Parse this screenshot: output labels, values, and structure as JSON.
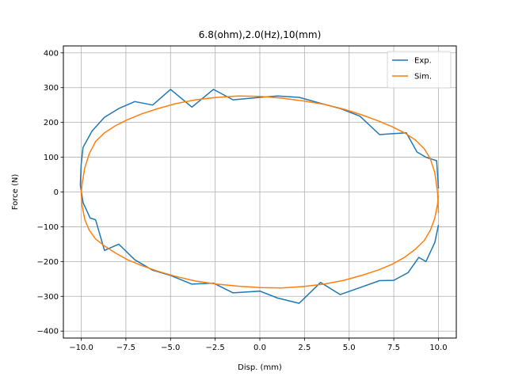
{
  "chart_data": {
    "type": "line",
    "title": "6.8(ohm),2.0(Hz),10(mm)",
    "xlabel": "Disp. (mm)",
    "ylabel": "Force (N)",
    "xlim": [
      -11,
      11
    ],
    "ylim": [
      -420,
      420
    ],
    "xticks": [
      -10.0,
      -7.5,
      -5.0,
      -2.5,
      0.0,
      2.5,
      5.0,
      7.5,
      10.0
    ],
    "xtick_labels": [
      "−10.0",
      "−7.5",
      "−5.0",
      "−2.5",
      "0.0",
      "2.5",
      "5.0",
      "7.5",
      "10.0"
    ],
    "yticks": [
      -400,
      -300,
      -200,
      -100,
      0,
      100,
      200,
      300,
      400
    ],
    "ytick_labels": [
      "−400",
      "−300",
      "−200",
      "−100",
      "0",
      "100",
      "200",
      "300",
      "400"
    ],
    "grid": true,
    "legend": "top-right",
    "series": [
      {
        "name": "Exp.",
        "color": "#1f77b4",
        "x": [
          10.0,
          9.9,
          9.6,
          9.3,
          8.8,
          8.2,
          7.5,
          6.7,
          5.6,
          4.5,
          3.4,
          2.2,
          1.0,
          0.0,
          -1.5,
          -2.6,
          -3.8,
          -5.0,
          -6.0,
          -7.0,
          -7.9,
          -8.7,
          -9.4,
          -9.9,
          -10.0,
          -10.05,
          -9.9,
          -9.5,
          -9.2,
          -8.7,
          -7.9,
          -7.0,
          -6.0,
          -5.0,
          -3.8,
          -2.6,
          -1.5,
          0.0,
          1.0,
          2.2,
          3.4,
          4.5,
          5.6,
          6.7,
          7.5,
          8.3,
          8.9,
          9.3,
          9.8,
          10.0
        ],
        "y": [
          10,
          90,
          95,
          100,
          115,
          170,
          168,
          165,
          218,
          240,
          255,
          272,
          276,
          272,
          265,
          295,
          244,
          295,
          250,
          260,
          240,
          215,
          175,
          128,
          80,
          20,
          -30,
          -75,
          -80,
          -168,
          -150,
          -195,
          -225,
          -240,
          -265,
          -262,
          -290,
          -285,
          -305,
          -320,
          -260,
          -295,
          -275,
          -255,
          -254,
          -232,
          -188,
          -200,
          -145,
          -95
        ]
      },
      {
        "name": "Sim.",
        "color": "#ff7f0e",
        "x": [
          10.0,
          9.95,
          9.8,
          9.55,
          9.2,
          8.7,
          8.1,
          7.4,
          6.6,
          5.7,
          4.7,
          3.6,
          2.4,
          1.2,
          0.0,
          -1.2,
          -2.4,
          -3.6,
          -4.7,
          -5.7,
          -6.6,
          -7.4,
          -8.1,
          -8.7,
          -9.2,
          -9.55,
          -9.8,
          -9.95,
          -10.0,
          -9.95,
          -9.8,
          -9.55,
          -9.2,
          -8.7,
          -8.1,
          -7.4,
          -6.6,
          -5.7,
          -4.7,
          -3.6,
          -2.4,
          -1.2,
          0.0,
          1.2,
          2.4,
          3.6,
          4.7,
          5.7,
          6.6,
          7.4,
          8.1,
          8.7,
          9.2,
          9.55,
          9.8,
          9.95,
          10.0
        ],
        "y": [
          -60,
          0,
          55,
          95,
          125,
          150,
          170,
          188,
          205,
          222,
          238,
          252,
          262,
          270,
          275,
          276,
          272,
          265,
          254,
          240,
          225,
          208,
          190,
          170,
          145,
          110,
          70,
          25,
          -5,
          -40,
          -80,
          -110,
          -135,
          -155,
          -175,
          -195,
          -212,
          -228,
          -243,
          -256,
          -265,
          -271,
          -275,
          -276,
          -272,
          -265,
          -254,
          -240,
          -225,
          -208,
          -188,
          -165,
          -140,
          -110,
          -75,
          -35,
          -10
        ]
      }
    ]
  }
}
